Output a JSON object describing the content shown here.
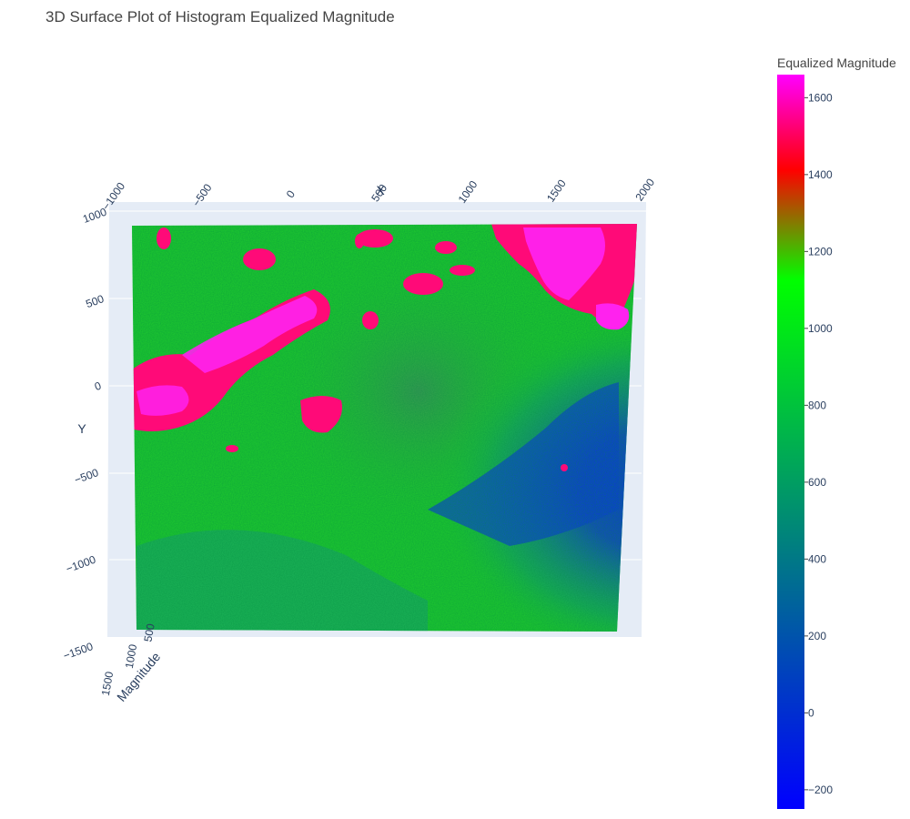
{
  "chart_data": {
    "type": "surface",
    "title": "3D Surface Plot of Histogram Equalized Magnitude",
    "axes": {
      "x": {
        "label": "X",
        "ticks": [
          "−1000",
          "−500",
          "0",
          "500",
          "1000",
          "1500",
          "2000"
        ],
        "range": [
          -1000,
          2000
        ]
      },
      "y": {
        "label": "Y",
        "ticks": [
          "1000",
          "500",
          "0",
          "−500",
          "−1000",
          "−1500"
        ],
        "range": [
          -1500,
          1000
        ]
      },
      "z": {
        "label": "Magnitude",
        "ticks": [
          "1500",
          "1000",
          "500"
        ]
      }
    },
    "colorbar": {
      "title": "Equalized Magnitude",
      "ticks": [
        "1600",
        "1400",
        "1200",
        "1000",
        "800",
        "600",
        "400",
        "200",
        "0",
        "−200"
      ],
      "tick_values": [
        1600,
        1400,
        1200,
        1000,
        800,
        600,
        400,
        200,
        0,
        -200
      ],
      "range": [
        -250,
        1660
      ],
      "colorscale": [
        [
          0,
          "#0000ff"
        ],
        [
          0.72,
          "#00ff00"
        ],
        [
          0.87,
          "#ff0000"
        ],
        [
          1,
          "#ff00ff"
        ]
      ]
    },
    "surface_regions": {
      "background_color": "#1fcc2e",
      "low_region_color": "#0a3ddc",
      "high_region_color": "#ff0a78",
      "peak_color": "#ff22ee"
    },
    "grid": true
  }
}
